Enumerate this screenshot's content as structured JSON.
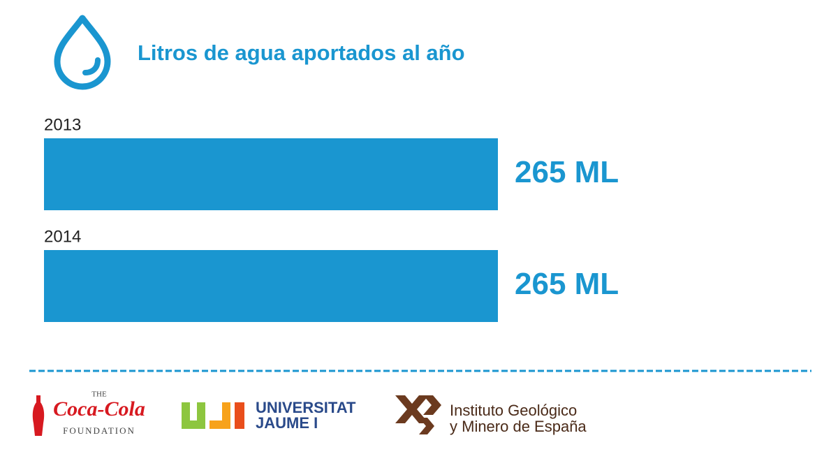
{
  "chart_data": {
    "type": "bar",
    "orientation": "horizontal",
    "title": "Litros de agua aportados al año",
    "categories": [
      "2013",
      "2014"
    ],
    "values": [
      265,
      265
    ],
    "value_labels": [
      "265 ML",
      "265 ML"
    ],
    "color": "#1a96d0"
  },
  "footer": {
    "coca_cola": {
      "the": "THE",
      "name": "Coca-Cola",
      "foundation": "FOUNDATION"
    },
    "uji": {
      "mark": "UJI",
      "line1": "UNIVERSITAT",
      "line2": "JAUME I"
    },
    "igme": {
      "line1": "Instituto Geológico",
      "line2": "y Minero de España"
    }
  }
}
